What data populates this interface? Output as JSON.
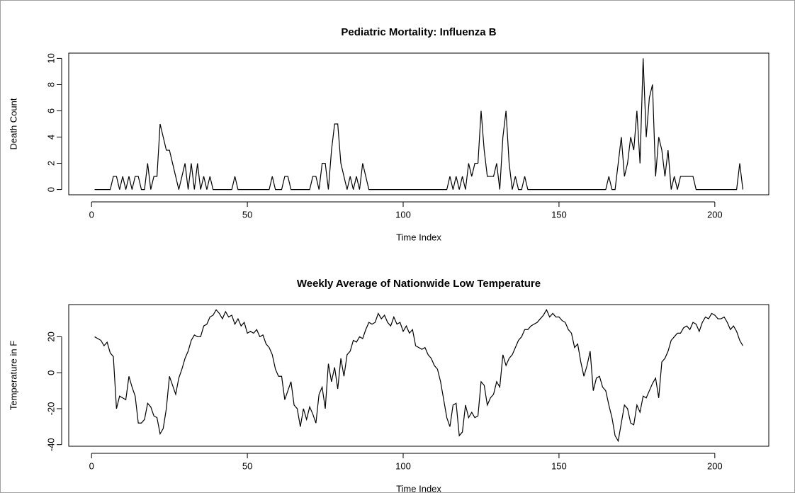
{
  "chart_data": [
    {
      "type": "line",
      "title": "Pediatric Mortality: Influenza B",
      "xlabel": "Time Index",
      "ylabel": "Death Count",
      "color": "#000000",
      "x": [
        1,
        2,
        3,
        4,
        5,
        6,
        7,
        8,
        9,
        10,
        11,
        12,
        13,
        14,
        15,
        16,
        17,
        18,
        19,
        20,
        21,
        22,
        23,
        24,
        25,
        26,
        27,
        28,
        29,
        30,
        31,
        32,
        33,
        34,
        35,
        36,
        37,
        38,
        39,
        40,
        41,
        42,
        43,
        44,
        45,
        46,
        47,
        48,
        49,
        50,
        51,
        52,
        53,
        54,
        55,
        56,
        57,
        58,
        59,
        60,
        61,
        62,
        63,
        64,
        65,
        66,
        67,
        68,
        69,
        70,
        71,
        72,
        73,
        74,
        75,
        76,
        77,
        78,
        79,
        80,
        81,
        82,
        83,
        84,
        85,
        86,
        87,
        88,
        89,
        90,
        91,
        92,
        93,
        94,
        95,
        96,
        97,
        98,
        99,
        100,
        101,
        102,
        103,
        104,
        105,
        106,
        107,
        108,
        109,
        110,
        111,
        112,
        113,
        114,
        115,
        116,
        117,
        118,
        119,
        120,
        121,
        122,
        123,
        124,
        125,
        126,
        127,
        128,
        129,
        130,
        131,
        132,
        133,
        134,
        135,
        136,
        137,
        138,
        139,
        140,
        141,
        142,
        143,
        144,
        145,
        146,
        147,
        148,
        149,
        150,
        151,
        152,
        153,
        154,
        155,
        156,
        157,
        158,
        159,
        160,
        161,
        162,
        163,
        164,
        165,
        166,
        167,
        168,
        169,
        170,
        171,
        172,
        173,
        174,
        175,
        176,
        177,
        178,
        179,
        180,
        181,
        182,
        183,
        184,
        185,
        186,
        187,
        188,
        189,
        190,
        191,
        192,
        193,
        194,
        195,
        196,
        197,
        198,
        199,
        200,
        201,
        202,
        203,
        204,
        205,
        206,
        207,
        208,
        209
      ],
      "values": [
        0,
        0,
        0,
        0,
        0,
        0,
        1,
        1,
        0,
        1,
        0,
        1,
        0,
        1,
        1,
        0,
        0,
        2,
        0,
        1,
        1,
        5,
        4,
        3,
        3,
        2,
        1,
        0,
        1,
        2,
        0,
        2,
        0,
        2,
        0,
        1,
        0,
        1,
        0,
        0,
        0,
        0,
        0,
        0,
        0,
        1,
        0,
        0,
        0,
        0,
        0,
        0,
        0,
        0,
        0,
        0,
        0,
        1,
        0,
        0,
        0,
        1,
        1,
        0,
        0,
        0,
        0,
        0,
        0,
        0,
        1,
        1,
        0,
        2,
        2,
        0,
        3,
        5,
        5,
        2,
        1,
        0,
        1,
        0,
        1,
        0,
        2,
        1,
        0,
        0,
        0,
        0,
        0,
        0,
        0,
        0,
        0,
        0,
        0,
        0,
        0,
        0,
        0,
        0,
        0,
        0,
        0,
        0,
        0,
        0,
        0,
        0,
        0,
        0,
        1,
        0,
        1,
        0,
        1,
        0,
        2,
        1,
        2,
        2,
        6,
        3,
        1,
        1,
        1,
        2,
        0,
        4,
        6,
        2,
        0,
        1,
        0,
        0,
        1,
        0,
        0,
        0,
        0,
        0,
        0,
        0,
        0,
        0,
        0,
        0,
        0,
        0,
        0,
        0,
        0,
        0,
        0,
        0,
        0,
        0,
        0,
        0,
        0,
        0,
        0,
        1,
        0,
        0,
        2,
        4,
        1,
        2,
        4,
        3,
        6,
        2,
        10,
        4,
        7,
        8,
        1,
        4,
        3,
        1,
        3,
        0,
        1,
        0,
        1,
        1,
        1,
        1,
        1,
        0,
        0,
        0,
        0,
        0,
        0,
        0,
        0,
        0,
        0,
        0,
        0,
        0,
        0,
        2,
        0
      ],
      "xlim": [
        -7.32,
        217.32
      ],
      "xticks": [
        0,
        50,
        100,
        150,
        200
      ],
      "ylim": [
        -0.4,
        10.4
      ],
      "yticks": [
        0,
        2,
        4,
        6,
        8,
        10
      ]
    },
    {
      "type": "line",
      "title": "Weekly Average of Nationwide Low Temperature",
      "xlabel": "Time Index",
      "ylabel": "Temperature in F",
      "color": "#000000",
      "x": [
        1,
        2,
        3,
        4,
        5,
        6,
        7,
        8,
        9,
        10,
        11,
        12,
        13,
        14,
        15,
        16,
        17,
        18,
        19,
        20,
        21,
        22,
        23,
        24,
        25,
        26,
        27,
        28,
        29,
        30,
        31,
        32,
        33,
        34,
        35,
        36,
        37,
        38,
        39,
        40,
        41,
        42,
        43,
        44,
        45,
        46,
        47,
        48,
        49,
        50,
        51,
        52,
        53,
        54,
        55,
        56,
        57,
        58,
        59,
        60,
        61,
        62,
        63,
        64,
        65,
        66,
        67,
        68,
        69,
        70,
        71,
        72,
        73,
        74,
        75,
        76,
        77,
        78,
        79,
        80,
        81,
        82,
        83,
        84,
        85,
        86,
        87,
        88,
        89,
        90,
        91,
        92,
        93,
        94,
        95,
        96,
        97,
        98,
        99,
        100,
        101,
        102,
        103,
        104,
        105,
        106,
        107,
        108,
        109,
        110,
        111,
        112,
        113,
        114,
        115,
        116,
        117,
        118,
        119,
        120,
        121,
        122,
        123,
        124,
        125,
        126,
        127,
        128,
        129,
        130,
        131,
        132,
        133,
        134,
        135,
        136,
        137,
        138,
        139,
        140,
        141,
        142,
        143,
        144,
        145,
        146,
        147,
        148,
        149,
        150,
        151,
        152,
        153,
        154,
        155,
        156,
        157,
        158,
        159,
        160,
        161,
        162,
        163,
        164,
        165,
        166,
        167,
        168,
        169,
        170,
        171,
        172,
        173,
        174,
        175,
        176,
        177,
        178,
        179,
        180,
        181,
        182,
        183,
        184,
        185,
        186,
        187,
        188,
        189,
        190,
        191,
        192,
        193,
        194,
        195,
        196,
        197,
        198,
        199,
        200,
        201,
        202,
        203,
        204,
        205,
        206,
        207,
        208,
        209
      ],
      "values": [
        20,
        19,
        18,
        15,
        17,
        11,
        9,
        -20,
        -13,
        -14,
        -15,
        -2,
        -8,
        -13,
        -28,
        -28,
        -26,
        -17,
        -19,
        -24,
        -25,
        -34,
        -31,
        -20,
        -2,
        -7,
        -12,
        -3,
        2,
        8,
        12,
        18,
        21,
        20,
        20,
        26,
        27,
        31,
        32,
        35,
        33,
        30,
        34,
        31,
        32,
        27,
        30,
        26,
        28,
        22,
        23,
        22,
        24,
        20,
        21,
        16,
        14,
        10,
        2,
        -2,
        -2,
        -15,
        -10,
        -5,
        -18,
        -20,
        -30,
        -20,
        -26,
        -19,
        -23,
        -28,
        -12,
        -8,
        -20,
        5,
        -5,
        3,
        -9,
        8,
        -2,
        10,
        12,
        18,
        17,
        20,
        19,
        24,
        28,
        27,
        28,
        33,
        30,
        32,
        28,
        26,
        31,
        27,
        28,
        23,
        26,
        22,
        24,
        15,
        14,
        13,
        14,
        10,
        8,
        4,
        2,
        -5,
        -15,
        -25,
        -30,
        -18,
        -17,
        -35,
        -33,
        -18,
        -25,
        -22,
        -25,
        -24,
        -5,
        -7,
        -18,
        -14,
        -12,
        -5,
        -8,
        10,
        4,
        8,
        10,
        14,
        18,
        20,
        24,
        24,
        26,
        27,
        28,
        30,
        32,
        35,
        31,
        33,
        31,
        31,
        29,
        28,
        24,
        22,
        14,
        16,
        6,
        -2,
        4,
        12,
        -10,
        -3,
        -2,
        -8,
        -10,
        -18,
        -25,
        -35,
        -38,
        -28,
        -18,
        -20,
        -28,
        -29,
        -18,
        -22,
        -13,
        -14,
        -10,
        -6,
        -3,
        -14,
        6,
        8,
        12,
        18,
        20,
        22,
        22,
        25,
        26,
        24,
        28,
        27,
        23,
        28,
        31,
        30,
        33,
        32,
        30,
        30,
        31,
        28,
        24,
        26,
        23,
        18,
        15
      ],
      "xlim": [
        -7.32,
        217.32
      ],
      "xticks": [
        0,
        50,
        100,
        150,
        200
      ],
      "ylim": [
        -40.9,
        37.9
      ],
      "yticks": [
        -40,
        -20,
        0,
        20
      ]
    }
  ]
}
